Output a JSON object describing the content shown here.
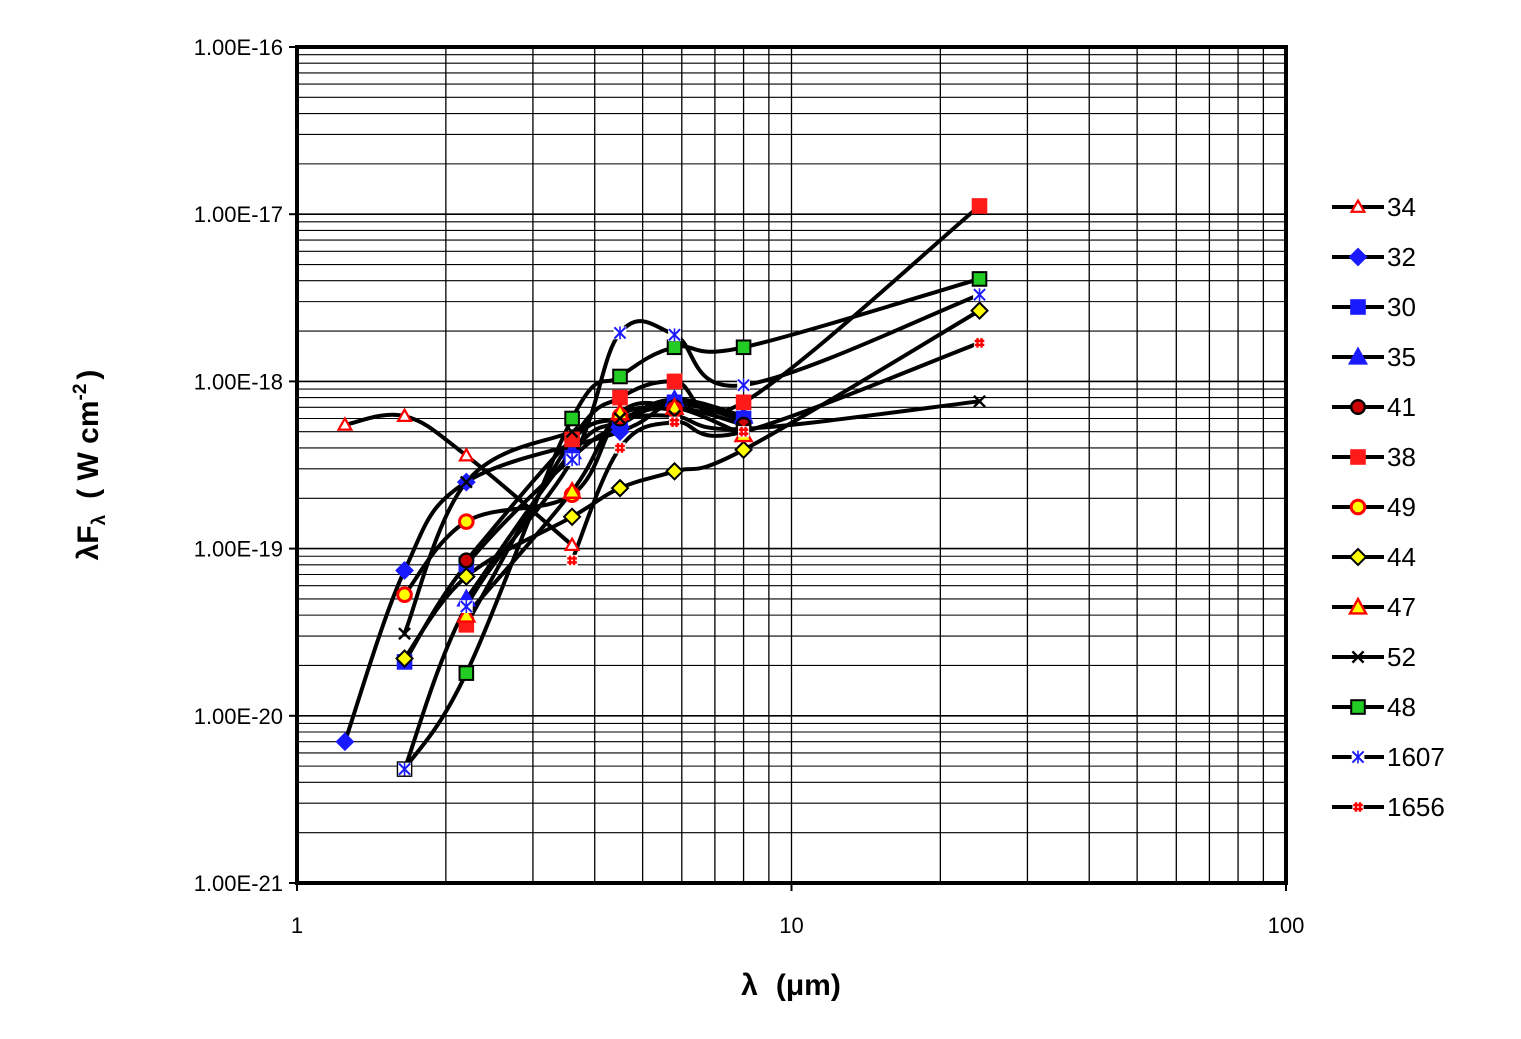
{
  "chart_data": {
    "type": "line",
    "title": "",
    "xlabel": "λ (μm)",
    "ylabel": "λFλ (W cm-2)",
    "x_scale": "log",
    "y_scale": "log",
    "xlim": [
      1,
      100
    ],
    "ylim": [
      1e-21,
      1e-16
    ],
    "grid": true,
    "legend_position": "right",
    "x_tick_labels": [
      {
        "value": 1,
        "label": "1"
      },
      {
        "value": 10,
        "label": "10"
      },
      {
        "value": 100,
        "label": "100"
      }
    ],
    "y_tick_labels": [
      {
        "value": 1e-16,
        "label": "1.00E-16"
      },
      {
        "value": 1e-17,
        "label": "1.00E-17"
      },
      {
        "value": 1e-18,
        "label": "1.00E-18"
      },
      {
        "value": 1e-19,
        "label": "1.00E-19"
      },
      {
        "value": 1e-20,
        "label": "1.00E-20"
      },
      {
        "value": 1e-21,
        "label": "1.00E-21"
      }
    ],
    "ylabel_parts": {
      "lambda": "λ",
      "F": "F",
      "sub": "λ",
      "units": "( W cm",
      "exp": "-2",
      "close": ")"
    },
    "xlabel_parts": {
      "lambda": "λ",
      "units": "(μm)"
    },
    "series": [
      {
        "name": "34",
        "marker": "triangle-open",
        "fill": "#ffffff",
        "stroke": "#ff0000",
        "x": [
          1.25,
          1.65,
          2.2,
          3.6
        ],
        "y": [
          5.5e-19,
          6.2e-19,
          3.6e-19,
          1.05e-19
        ]
      },
      {
        "name": "32",
        "marker": "diamond",
        "fill": "#1a1aff",
        "stroke": "#1a1aff",
        "x": [
          1.25,
          1.65,
          2.2,
          4.5,
          5.8,
          8.0
        ],
        "y": [
          7e-21,
          7.4e-20,
          2.5e-19,
          5e-19,
          7.3e-19,
          5.8e-19
        ]
      },
      {
        "name": "30",
        "marker": "square",
        "fill": "#1a1aff",
        "stroke": "#1a1aff",
        "x": [
          1.65,
          2.2,
          3.6,
          4.5,
          5.8,
          8.0
        ],
        "y": [
          2.1e-20,
          8e-20,
          3.5e-19,
          5.5e-19,
          7.5e-19,
          6e-19
        ]
      },
      {
        "name": "35",
        "marker": "triangle",
        "fill": "#1a1aff",
        "stroke": "#1a1aff",
        "x": [
          2.2,
          3.6,
          4.5,
          5.8,
          8.0
        ],
        "y": [
          5e-20,
          3.8e-19,
          5.8e-19,
          7.8e-19,
          6.2e-19
        ]
      },
      {
        "name": "41",
        "marker": "circle",
        "fill": "#cc0000",
        "stroke": "#000000",
        "x": [
          2.2,
          3.6,
          4.5,
          5.8,
          8.0
        ],
        "y": [
          8.5e-20,
          4.5e-19,
          6e-19,
          7e-19,
          5.5e-19
        ]
      },
      {
        "name": "38",
        "marker": "square",
        "fill": "#ff1a1a",
        "stroke": "#ff1a1a",
        "x": [
          2.2,
          3.6,
          4.5,
          5.8,
          8.0,
          24
        ],
        "y": [
          3.5e-20,
          4.5e-19,
          8e-19,
          1e-18,
          7.5e-19,
          1.12e-17
        ]
      },
      {
        "name": "49",
        "marker": "circle-open",
        "fill": "#ffff00",
        "stroke": "#ff0000",
        "x": [
          1.65,
          2.2,
          3.6,
          4.5,
          5.8
        ],
        "y": [
          5.3e-20,
          1.45e-19,
          2.1e-19,
          6.2e-19,
          6.8e-19
        ]
      },
      {
        "name": "44",
        "marker": "diamond",
        "fill": "#ffff00",
        "stroke": "#000000",
        "x": [
          1.65,
          2.2,
          3.6,
          4.5,
          5.8,
          8.0,
          24
        ],
        "y": [
          2.2e-20,
          6.8e-20,
          1.55e-19,
          2.3e-19,
          2.9e-19,
          3.9e-19,
          2.65e-18
        ]
      },
      {
        "name": "47",
        "marker": "triangle",
        "fill": "#ffff00",
        "stroke": "#ff0000",
        "x": [
          2.2,
          3.6,
          4.5,
          5.8,
          8.0
        ],
        "y": [
          4e-20,
          2.2e-19,
          6.5e-19,
          7e-19,
          4.8e-19
        ]
      },
      {
        "name": "52",
        "marker": "x",
        "fill": "none",
        "stroke": "#000000",
        "x": [
          1.65,
          2.2,
          3.6,
          4.5,
          5.8,
          8.0,
          24
        ],
        "y": [
          3.1e-20,
          2.5e-19,
          5e-19,
          6e-19,
          6.2e-19,
          5.2e-19,
          7.6e-19
        ]
      },
      {
        "name": "48",
        "marker": "square",
        "fill": "#22cc22",
        "stroke": "#000000",
        "x": [
          1.65,
          2.2,
          3.6,
          4.5,
          5.8,
          8.0,
          24
        ],
        "y": [
          4.8e-21,
          1.8e-20,
          6e-19,
          1.07e-18,
          1.6e-18,
          1.6e-18,
          4.1e-18
        ]
      },
      {
        "name": "1607",
        "marker": "star",
        "fill": "#ffffff",
        "stroke": "#1a1aff",
        "x": [
          1.65,
          2.2,
          3.6,
          4.5,
          5.8,
          8.0,
          24
        ],
        "y": [
          4.8e-21,
          4.5e-20,
          3.4e-19,
          1.95e-18,
          1.9e-18,
          9.5e-19,
          3.3e-18
        ]
      },
      {
        "name": "1656",
        "marker": "plus",
        "fill": "#ffffff",
        "stroke": "#ff0000",
        "x": [
          3.6,
          4.5,
          5.8,
          8.0,
          24
        ],
        "y": [
          8.5e-20,
          4e-19,
          5.7e-19,
          5e-19,
          1.7e-18
        ]
      }
    ]
  }
}
